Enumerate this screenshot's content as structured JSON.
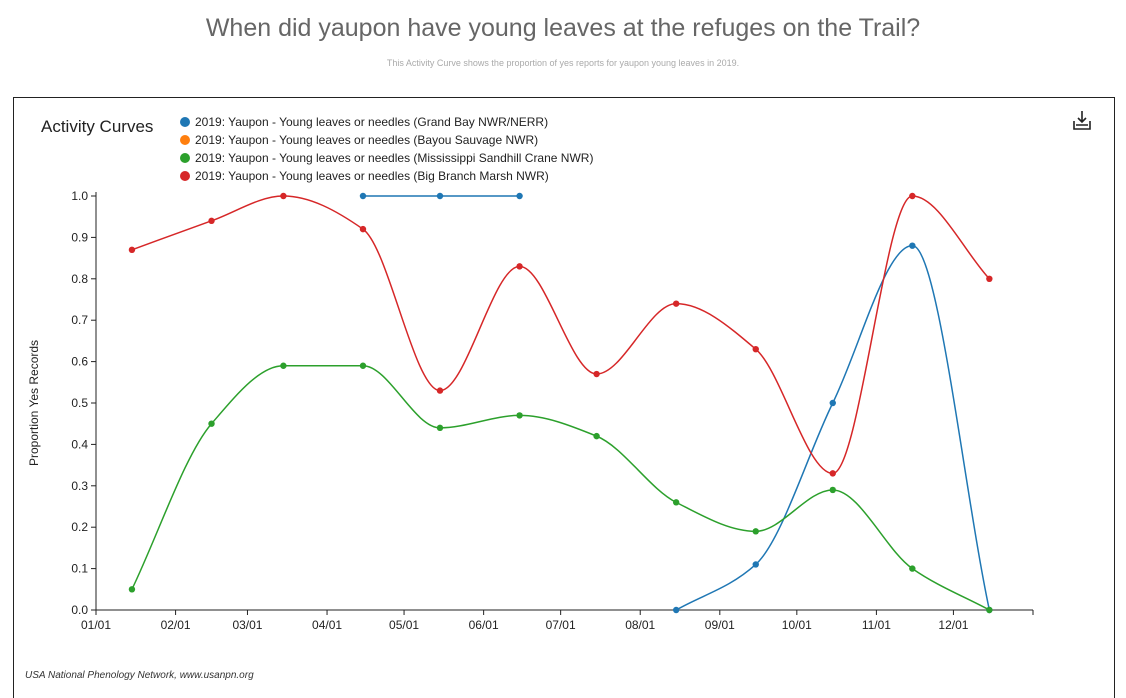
{
  "page": {
    "title": "When did yaupon have young leaves at the refuges on the Trail?",
    "subtitle": "This Activity Curve shows the proportion of yes reports for yaupon young leaves in 2019.",
    "attribution": "USA National Phenology Network, www.usanpn.org"
  },
  "toolbar": {
    "download_icon": "download-icon"
  },
  "chart_data": {
    "type": "line",
    "title": "Activity Curves",
    "ylabel": "Proportion Yes Records",
    "xlabel": "",
    "ylim": [
      0,
      1
    ],
    "yticks": [
      "0.0",
      "0.1",
      "0.2",
      "0.3",
      "0.4",
      "0.5",
      "0.6",
      "0.7",
      "0.8",
      "0.9",
      "1.0"
    ],
    "xticks": [
      "01/01",
      "02/01",
      "03/01",
      "04/01",
      "05/01",
      "06/01",
      "07/01",
      "08/01",
      "09/01",
      "10/01",
      "11/01",
      "12/01"
    ],
    "legend_position": "top",
    "series": [
      {
        "name": "2019: Yaupon - Young leaves or needles (Grand Bay NWR/NERR)",
        "color": "#1f77b4",
        "segments": [
          {
            "x": [
              "04/15",
              "05/15",
              "06/15"
            ],
            "y": [
              1.0,
              1.0,
              1.0
            ]
          },
          {
            "x": [
              "08/15",
              "09/15",
              "10/15",
              "11/15",
              "12/15"
            ],
            "y": [
              0.0,
              0.11,
              0.5,
              0.88,
              0.0
            ]
          }
        ]
      },
      {
        "name": "2019: Yaupon - Young leaves or needles (Bayou Sauvage NWR)",
        "color": "#ff7f0e",
        "segments": []
      },
      {
        "name": "2019: Yaupon - Young leaves or needles (Mississippi Sandhill Crane NWR)",
        "color": "#2ca02c",
        "segments": [
          {
            "x": [
              "01/15",
              "02/15",
              "03/15",
              "04/15",
              "05/15",
              "06/15",
              "07/15",
              "08/15",
              "09/15",
              "10/15",
              "11/15",
              "12/15"
            ],
            "y": [
              0.05,
              0.45,
              0.59,
              0.59,
              0.44,
              0.47,
              0.42,
              0.26,
              0.19,
              0.29,
              0.1,
              0.0
            ]
          }
        ]
      },
      {
        "name": "2019: Yaupon - Young leaves or needles (Big Branch Marsh NWR)",
        "color": "#d62728",
        "segments": [
          {
            "x": [
              "01/15",
              "02/15",
              "03/15",
              "04/15",
              "05/15",
              "06/15",
              "07/15",
              "08/15",
              "09/15",
              "10/15",
              "11/15",
              "12/15"
            ],
            "y": [
              0.87,
              0.94,
              1.0,
              0.92,
              0.53,
              0.83,
              0.57,
              0.74,
              0.63,
              0.33,
              1.0,
              0.8
            ]
          }
        ]
      }
    ]
  }
}
